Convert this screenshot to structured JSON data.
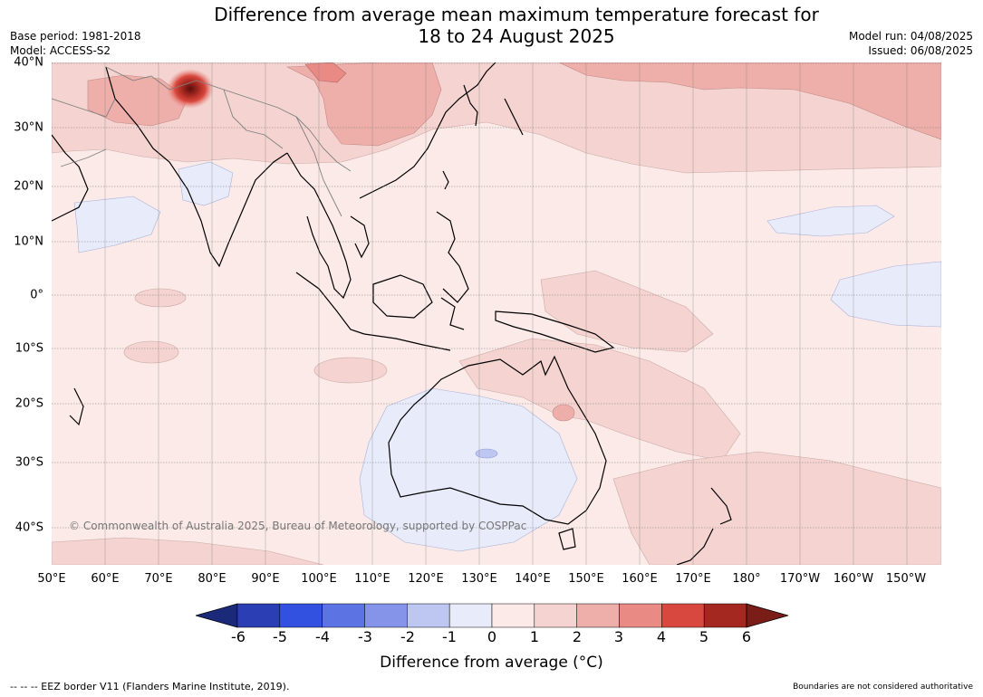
{
  "title": {
    "line1": "Difference from average mean maximum temperature forecast for",
    "line2": "18 to 24 August 2025"
  },
  "meta_left": {
    "base_period": "Base period: 1981-2018",
    "model": "Model: ACCESS-S2"
  },
  "meta_right": {
    "model_run": "Model run: 04/08/2025",
    "issued": "Issued: 06/08/2025"
  },
  "map": {
    "copyright": "© Commonwealth of Australia 2025, Bureau of Meteorology, supported by COSPPac",
    "lat_labels": [
      "40°N",
      "30°N",
      "20°N",
      "10°N",
      "0°",
      "10°S",
      "20°S",
      "30°S",
      "40°S"
    ],
    "lon_labels": [
      "50°E",
      "60°E",
      "70°E",
      "80°E",
      "90°E",
      "100°E",
      "110°E",
      "120°E",
      "130°E",
      "140°E",
      "150°E",
      "160°E",
      "170°E",
      "180°",
      "170°W",
      "160°W",
      "150°W"
    ],
    "anomaly_colors": {
      "neutral_warm": "#fbeae8",
      "warm_1_2": "#f4d3d0",
      "warm_2_3": "#eeaeaa",
      "warm_3_4": "#e98a85",
      "warm_extreme": "#7a1c18",
      "cool_0_1": "#e8ebfa",
      "cool_1_2": "#bec6f2"
    },
    "coastline_color": "#000000",
    "border_color": "#808080",
    "grid_color": "#808080"
  },
  "colorbar": {
    "ticks": [
      "-6",
      "-5",
      "-4",
      "-3",
      "-2",
      "-1",
      "0",
      "1",
      "2",
      "3",
      "4",
      "5",
      "6"
    ],
    "colors": [
      "#1a2a78",
      "#2b3eb3",
      "#3351e0",
      "#5c73e3",
      "#8594e8",
      "#bec6f2",
      "#e8ebfa",
      "#fbeae8",
      "#f4d3d0",
      "#eeaeaa",
      "#e98a85",
      "#d9483e",
      "#a52820",
      "#7a1c18"
    ],
    "label": "Difference from average (°C)"
  },
  "footer": {
    "left": "--  --  -- EEZ border V11 (Flanders Marine Institute, 2019).",
    "right": "Boundaries are not considered authoritative"
  }
}
